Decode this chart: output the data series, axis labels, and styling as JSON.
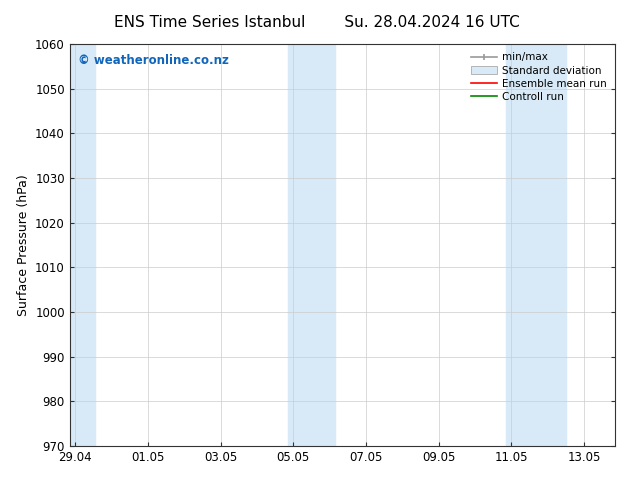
{
  "title_left": "ENS Time Series Istanbul",
  "title_right": "Su. 28.04.2024 16 UTC",
  "ylabel": "Surface Pressure (hPa)",
  "ylim": [
    970,
    1060
  ],
  "yticks": [
    970,
    980,
    990,
    1000,
    1010,
    1020,
    1030,
    1040,
    1050,
    1060
  ],
  "xtick_labels": [
    "29.04",
    "01.05",
    "03.05",
    "05.05",
    "07.05",
    "09.05",
    "11.05",
    "13.05"
  ],
  "xtick_positions": [
    0,
    2,
    4,
    6,
    8,
    10,
    12,
    14
  ],
  "xlim": [
    -0.15,
    14.85
  ],
  "bg_color": "#ffffff",
  "plot_bg_color": "#ffffff",
  "shaded_regions": [
    {
      "x_start": -0.15,
      "x_end": 0.5,
      "color": "#dae8f5"
    },
    {
      "x_start": 5.5,
      "x_end": 6.5,
      "color": "#dae8f5"
    },
    {
      "x_start": 6.5,
      "x_end": 7.0,
      "color": "#dae8f5"
    },
    {
      "x_start": 11.5,
      "x_end": 12.5,
      "color": "#dae8f5"
    },
    {
      "x_start": 12.5,
      "x_end": 13.5,
      "color": "#dae8f5"
    }
  ],
  "watermark_text": "© weatheronline.co.nz",
  "watermark_color": "#1166bb",
  "legend_items": [
    {
      "label": "min/max",
      "color": "#999999",
      "type": "line_with_caps"
    },
    {
      "label": "Standard deviation",
      "color": "#ccddee",
      "type": "filled_box"
    },
    {
      "label": "Ensemble mean run",
      "color": "#ff0000",
      "type": "line"
    },
    {
      "label": "Controll run",
      "color": "#008800",
      "type": "line"
    }
  ],
  "title_fontsize": 11,
  "tick_fontsize": 8.5,
  "ylabel_fontsize": 9,
  "watermark_fontsize": 8.5,
  "legend_fontsize": 7.5
}
